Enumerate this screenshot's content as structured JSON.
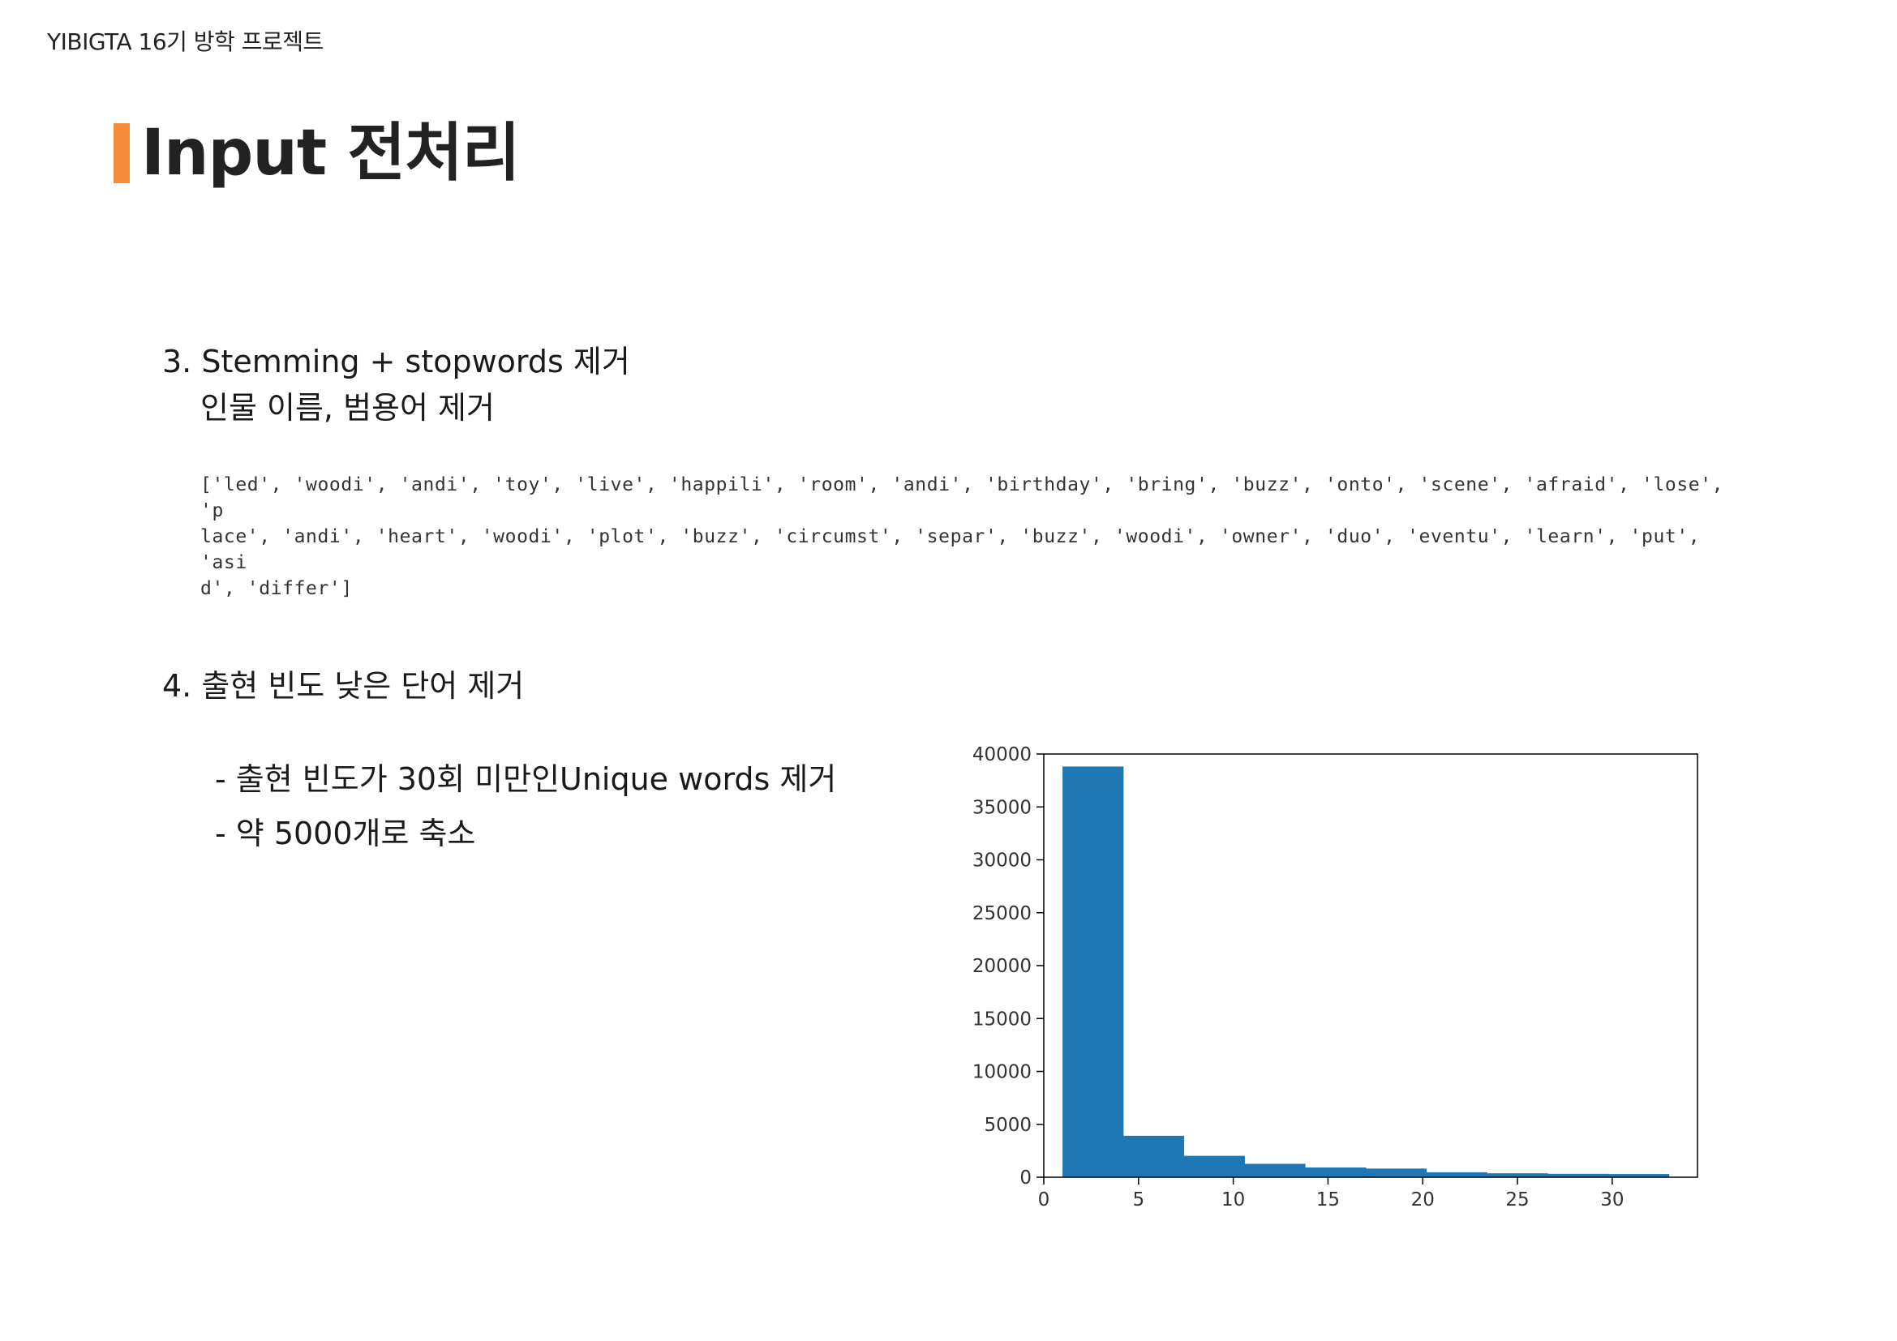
{
  "header": {
    "label": "YIBIGTA 16기 방학 프로젝트"
  },
  "slide": {
    "title": "Input 전처리",
    "accent_color": "#f58a3a"
  },
  "section3": {
    "heading": "3. Stemming + stopwords 제거",
    "subheading": "인물 이름, 범용어 제거",
    "code_output": "['led', 'woodi', 'andi', 'toy', 'live', 'happili', 'room', 'andi', 'birthday', 'bring', 'buzz', 'onto', 'scene', 'afraid', 'lose', 'p\nlace', 'andi', 'heart', 'woodi', 'plot', 'buzz', 'circumst', 'separ', 'buzz', 'woodi', 'owner', 'duo', 'eventu', 'learn', 'put', 'asi\nd', 'differ']"
  },
  "section4": {
    "heading": "4. 출현 빈도 낮은 단어 제거",
    "bullets": [
      "- 출현 빈도가 30회 미만인Unique words 제거",
      "- 약 5000개로 축소"
    ]
  },
  "chart_data": {
    "type": "bar",
    "title": "",
    "xlabel": "",
    "ylabel": "",
    "bar_color": "#1f77b4",
    "bin_edges": [
      1,
      4.2,
      7.4,
      10.6,
      13.8,
      17,
      20.2,
      23.4,
      26.6,
      29.8,
      33
    ],
    "values": [
      38800,
      3900,
      2000,
      1250,
      900,
      800,
      450,
      350,
      300,
      280
    ],
    "xlim": [
      0,
      34.5
    ],
    "ylim": [
      0,
      40000
    ],
    "x_ticks": [
      0,
      5,
      10,
      15,
      20,
      25,
      30
    ],
    "y_ticks": [
      0,
      5000,
      10000,
      15000,
      20000,
      25000,
      30000,
      35000,
      40000
    ],
    "grid": false
  }
}
